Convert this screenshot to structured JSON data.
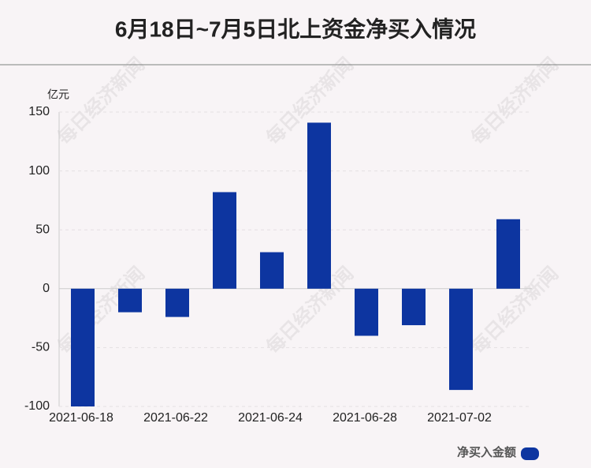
{
  "chart_data": {
    "type": "bar",
    "title": "6月18日~7月5日北上资金净买入情况",
    "y_unit": "亿元",
    "watermark": "每日经济新闻",
    "categories": [
      "2021-06-18",
      null,
      "2021-06-22",
      null,
      "2021-06-24",
      null,
      "2021-06-28",
      null,
      "2021-07-02",
      null
    ],
    "series": [
      {
        "name": "净买入金额",
        "color": "#0d35a0",
        "values": [
          -100,
          -20,
          -24,
          82,
          31,
          141,
          -40,
          -31,
          -86,
          59
        ]
      }
    ],
    "ylim": [
      -100,
      150
    ],
    "yticks": [
      -100,
      -50,
      0,
      50,
      100,
      150
    ],
    "grid": true,
    "legend": "bottom-right"
  }
}
